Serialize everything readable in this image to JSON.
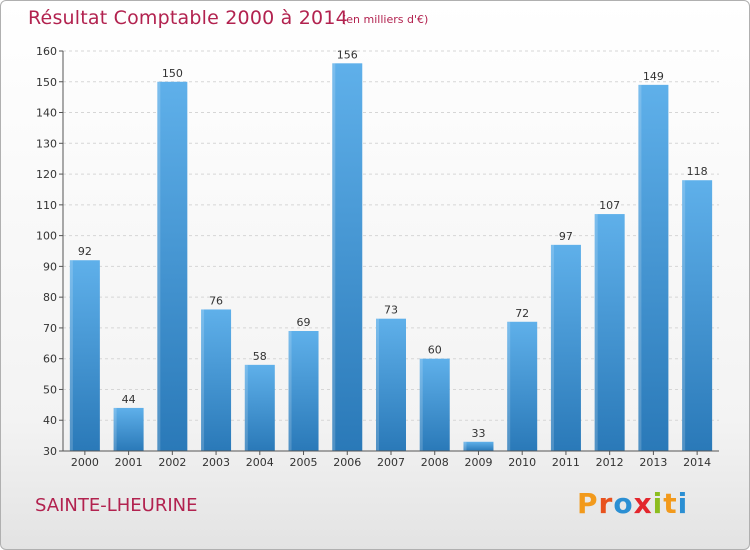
{
  "header": {
    "title": "Résultat Comptable 2000 à 2014",
    "subtitle": "(en milliers d'€)"
  },
  "footer": {
    "commune": "SAINTE-LHEURINE",
    "logo_text": "Proxiti"
  },
  "colors": {
    "title": "#b2224f",
    "bar_light": "#5fb0ea",
    "bar_dark": "#2a79b8",
    "logo_letters": [
      "#f29a1c",
      "#e8521e",
      "#2b8fd3",
      "#e3262d",
      "#8cbd1f",
      "#f29a1c",
      "#2b8fd3"
    ]
  },
  "chart_data": {
    "type": "bar",
    "title": "Résultat Comptable 2000 à 2014",
    "ylabel": "(en milliers d'€)",
    "xlabel": "",
    "categories": [
      "2000",
      "2001",
      "2002",
      "2003",
      "2004",
      "2005",
      "2006",
      "2007",
      "2008",
      "2009",
      "2010",
      "2011",
      "2012",
      "2013",
      "2014"
    ],
    "values": [
      92,
      44,
      150,
      76,
      58,
      69,
      156,
      73,
      60,
      33,
      72,
      97,
      107,
      149,
      118
    ],
    "ylim": [
      30,
      160
    ],
    "yticks": [
      30,
      40,
      50,
      60,
      70,
      80,
      90,
      100,
      110,
      120,
      130,
      140,
      150,
      160
    ],
    "grid": true,
    "legend": "none"
  }
}
